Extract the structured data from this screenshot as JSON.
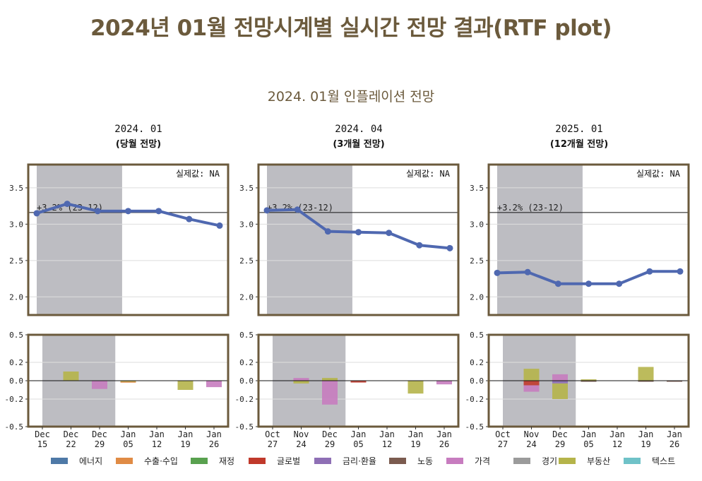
{
  "title": "2024년 01월 전망시계별 실시간 전망 결과(RTF plot)",
  "subtitle": "2024. 01월 인플레이션 전망",
  "legend": [
    {
      "label": "에너지",
      "color": "#4e79a7"
    },
    {
      "label": "수출·수입",
      "color": "#e08b45"
    },
    {
      "label": "재정",
      "color": "#59a14f"
    },
    {
      "label": "글로벌",
      "color": "#c0392b"
    },
    {
      "label": "금리·환율",
      "color": "#8e6fb5"
    },
    {
      "label": "노동",
      "color": "#7b5b4f"
    },
    {
      "label": "가격",
      "color": "#c77cbf"
    },
    {
      "label": "경기",
      "color": "#9b9b9b"
    },
    {
      "label": "부동산",
      "color": "#b5b44a"
    },
    {
      "label": "텍스트",
      "color": "#6fc2c8"
    }
  ],
  "chart_data": [
    {
      "type": "line",
      "title": "2024. 01",
      "subtitle": "(당월 전망)",
      "actual_label": "실제값: NA",
      "reference_label": "+3.2% (23-12)",
      "reference_value": 3.16,
      "ylim": [
        1.75,
        3.82
      ],
      "yticks": [
        "2.0",
        "2.5",
        "3.0",
        "3.5"
      ],
      "shaded_range": [
        "Dec 15",
        "Dec 29"
      ],
      "x": [
        "Dec 15",
        "Dec 22",
        "Dec 29",
        "Jan 05",
        "Jan 12",
        "Jan 19",
        "Jan 26"
      ],
      "series": [
        {
          "values": [
            3.15,
            3.28,
            3.18,
            3.18,
            3.18,
            3.07,
            2.98
          ]
        }
      ],
      "contribution": {
        "type": "bar",
        "ylim": [
          -0.5,
          0.5
        ],
        "yticks": [
          "-0.5",
          "-0.2",
          "0.0",
          "0.2",
          "0.5"
        ],
        "categories": [
          "Dec 15",
          "Dec 22",
          "Dec 29",
          "Jan 05",
          "Jan 12",
          "Jan 19",
          "Jan 26"
        ],
        "bars": [
          [],
          [
            {
              "component": "부동산",
              "value": 0.1
            }
          ],
          [
            {
              "component": "가격",
              "value": -0.09
            }
          ],
          [
            {
              "component": "부동산",
              "value": -0.01
            },
            {
              "component": "수출·수입",
              "value": -0.005
            }
          ],
          [],
          [
            {
              "component": "부동산",
              "value": -0.1
            }
          ],
          [
            {
              "component": "가격",
              "value": -0.07
            }
          ]
        ]
      }
    },
    {
      "type": "line",
      "title": "2024. 04",
      "subtitle": "(3개월 전망)",
      "actual_label": "실제값: NA",
      "reference_label": "+3.2% (23-12)",
      "reference_value": 3.16,
      "ylim": [
        1.75,
        3.82
      ],
      "yticks": [
        "2.0",
        "2.5",
        "3.0",
        "3.5"
      ],
      "shaded_range": [
        "Oct 27",
        "Dec 29"
      ],
      "x": [
        "Oct 27",
        "Nov 24",
        "Dec 29",
        "Jan 05",
        "Jan 12",
        "Jan 19",
        "Jan 26"
      ],
      "series": [
        {
          "values": [
            3.19,
            3.2,
            2.9,
            2.89,
            2.88,
            2.71,
            2.67
          ]
        }
      ],
      "contribution": {
        "type": "bar",
        "ylim": [
          -0.5,
          0.5
        ],
        "yticks": [
          "-0.5",
          "-0.2",
          "0.0",
          "0.2",
          "0.5"
        ],
        "categories": [
          "Oct 27",
          "Nov 24",
          "Dec 29",
          "Jan 05",
          "Jan 12",
          "Jan 19",
          "Jan 26"
        ],
        "bars": [
          [],
          [
            {
              "component": "가격",
              "value": 0.03
            },
            {
              "component": "부동산",
              "value": -0.03
            }
          ],
          [
            {
              "component": "부동산",
              "value": 0.03
            },
            {
              "component": "가격",
              "value": -0.26
            }
          ],
          [
            {
              "component": "글로벌",
              "value": -0.02
            }
          ],
          [],
          [
            {
              "component": "부동산",
              "value": -0.14
            }
          ],
          [
            {
              "component": "가격",
              "value": -0.04
            }
          ]
        ]
      }
    },
    {
      "type": "line",
      "title": "2025. 01",
      "subtitle": "(12개월 전망)",
      "actual_label": "실제값: NA",
      "reference_label": "+3.2% (23-12)",
      "reference_value": 3.16,
      "ylim": [
        1.75,
        3.82
      ],
      "yticks": [
        "2.0",
        "2.5",
        "3.0",
        "3.5"
      ],
      "shaded_range": [
        "Oct 27",
        "Dec 29"
      ],
      "x": [
        "Oct 27",
        "Nov 24",
        "Dec 29",
        "Jan 05",
        "Jan 12",
        "Jan 19",
        "Jan 26"
      ],
      "series": [
        {
          "values": [
            2.33,
            2.34,
            2.18,
            2.18,
            2.18,
            2.35,
            2.35
          ]
        }
      ],
      "contribution": {
        "type": "bar",
        "ylim": [
          -0.5,
          0.5
        ],
        "yticks": [
          "-0.5",
          "-0.2",
          "0.0",
          "0.2",
          "0.5"
        ],
        "categories": [
          "Oct 27",
          "Nov 24",
          "Dec 29",
          "Jan 05",
          "Jan 12",
          "Jan 19",
          "Jan 26"
        ],
        "bars": [
          [],
          [
            {
              "component": "부동산",
              "value": 0.13
            },
            {
              "component": "글로벌",
              "value": -0.05
            },
            {
              "component": "가격",
              "value": -0.07
            }
          ],
          [
            {
              "component": "가격",
              "value": 0.07
            },
            {
              "component": "금리·환율",
              "value": -0.03
            },
            {
              "component": "부동산",
              "value": -0.17
            }
          ],
          [
            {
              "component": "부동산",
              "value": 0.015
            },
            {
              "component": "노동",
              "value": -0.01
            }
          ],
          [],
          [
            {
              "component": "부동산",
              "value": 0.15
            },
            {
              "component": "노동",
              "value": -0.01
            }
          ],
          [
            {
              "component": "노동",
              "value": -0.005
            }
          ]
        ]
      }
    }
  ]
}
